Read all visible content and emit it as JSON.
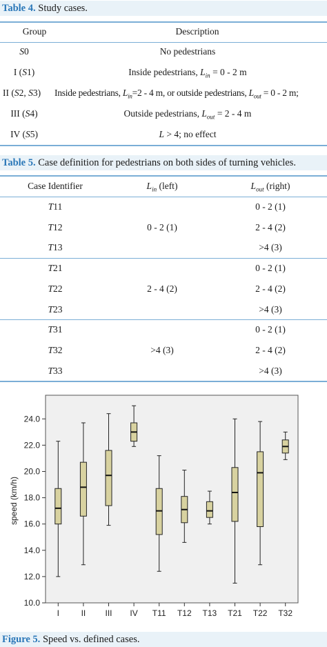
{
  "table4": {
    "caption_label": "Table 4.",
    "caption_text": " Study cases.",
    "headers": [
      "Group",
      "Description"
    ],
    "rows": [
      {
        "group": "S0",
        "description": "No pedestrians"
      },
      {
        "group": "I (S1)",
        "description": "Inside pedestrians, Lin = 0 - 2 m"
      },
      {
        "group": "II (S2, S3)",
        "description": "Inside pedestrians, Lin=2 - 4 m, or outside pedestrians, Lout = 0 - 2 m;"
      },
      {
        "group": "III (S4)",
        "description": "Outside pedestrians, Lout = 2 - 4 m"
      },
      {
        "group": "IV (S5)",
        "description": "L > 4; no effect"
      }
    ]
  },
  "table5": {
    "caption_label": "Table 5.",
    "caption_text": " Case definition for pedestrians on both sides of turning vehicles.",
    "headers": [
      "Case Identifier",
      "Lin (left)",
      "Lout (right)"
    ],
    "rows": [
      {
        "id": "T11",
        "lin": "",
        "lout": "0 - 2 (1)"
      },
      {
        "id": "T12",
        "lin": "0 - 2 (1)",
        "lout": "2 - 4 (2)"
      },
      {
        "id": "T13",
        "lin": "",
        "lout": ">4 (3)"
      },
      {
        "id": "T21",
        "lin": "",
        "lout": "0 - 2 (1)"
      },
      {
        "id": "T22",
        "lin": "2 - 4 (2)",
        "lout": "2 - 4 (2)"
      },
      {
        "id": "T23",
        "lin": "",
        "lout": ">4 (3)"
      },
      {
        "id": "T31",
        "lin": "",
        "lout": "0 - 2 (1)"
      },
      {
        "id": "T32",
        "lin": ">4 (3)",
        "lout": "2 - 4 (2)"
      },
      {
        "id": "T33",
        "lin": "",
        "lout": ">4 (3)"
      }
    ]
  },
  "figure5": {
    "caption_label": "Figure 5.",
    "caption_text": " Speed vs. defined cases."
  },
  "colors": {
    "caption_bg": "#e9f2f8",
    "caption_label": "#2a77b8",
    "rule": "#7aaed6",
    "plot_bg": "#f0f0f0",
    "box_fill": "#d8d2a0"
  },
  "chart_data": {
    "type": "boxplot",
    "ylabel": "speed (km/h)",
    "ylim": [
      10.0,
      25.8
    ],
    "yticks": [
      "10.0",
      "12.0",
      "14.0",
      "16.0",
      "18.0",
      "20.0",
      "22.0",
      "24.0"
    ],
    "categories": [
      "I",
      "II",
      "III",
      "IV",
      "T11",
      "T12",
      "T13",
      "T21",
      "T22",
      "T32"
    ],
    "boxes": [
      {
        "min": 12.0,
        "q1": 16.0,
        "median": 17.2,
        "q3": 18.7,
        "max": 22.3
      },
      {
        "min": 12.9,
        "q1": 16.6,
        "median": 18.8,
        "q3": 20.7,
        "max": 23.7
      },
      {
        "min": 15.9,
        "q1": 17.4,
        "median": 19.7,
        "q3": 21.6,
        "max": 24.4
      },
      {
        "min": 21.9,
        "q1": 22.3,
        "median": 23.0,
        "q3": 23.7,
        "max": 25.0
      },
      {
        "min": 12.4,
        "q1": 15.2,
        "median": 17.0,
        "q3": 18.7,
        "max": 21.2
      },
      {
        "min": 14.6,
        "q1": 16.1,
        "median": 17.1,
        "q3": 18.1,
        "max": 20.1
      },
      {
        "min": 16.0,
        "q1": 16.5,
        "median": 17.0,
        "q3": 17.7,
        "max": 18.5
      },
      {
        "min": 11.5,
        "q1": 16.2,
        "median": 18.4,
        "q3": 20.3,
        "max": 24.0
      },
      {
        "min": 12.9,
        "q1": 15.8,
        "median": 19.9,
        "q3": 21.5,
        "max": 23.8
      },
      {
        "min": 20.9,
        "q1": 21.4,
        "median": 21.9,
        "q3": 22.4,
        "max": 23.0
      }
    ]
  }
}
